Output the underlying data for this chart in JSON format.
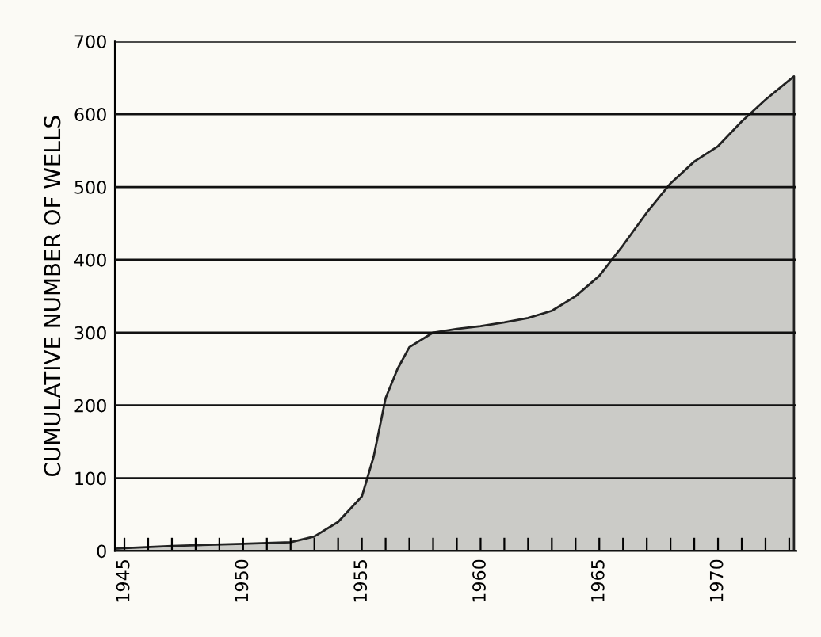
{
  "chart_data": {
    "type": "area",
    "ylabel": "CUMULATIVE NUMBER OF WELLS",
    "x": [
      1944.6,
      1945,
      1947,
      1950,
      1952,
      1953,
      1954,
      1955,
      1955.5,
      1956,
      1956.5,
      1957,
      1958,
      1959,
      1960,
      1961,
      1962,
      1963,
      1964,
      1965,
      1966,
      1967,
      1968,
      1969,
      1970,
      1971,
      1972,
      1973.2
    ],
    "series": [
      {
        "color": "#222222",
        "values": [
          3,
          4,
          7,
          10,
          12,
          20,
          40,
          75,
          130,
          210,
          250,
          280,
          300,
          305,
          309,
          314,
          320,
          330,
          350,
          378,
          420,
          465,
          505,
          535,
          556,
          590,
          620,
          652
        ]
      }
    ],
    "xlim": [
      1944.6,
      1973.3
    ],
    "ylim": [
      0,
      700
    ],
    "xticks": [
      {
        "value": 1945,
        "label": "1945"
      },
      {
        "value": 1946,
        "label": null
      },
      {
        "value": 1947,
        "label": null
      },
      {
        "value": 1948,
        "label": null
      },
      {
        "value": 1949,
        "label": null
      },
      {
        "value": 1950,
        "label": "1950"
      },
      {
        "value": 1951,
        "label": null
      },
      {
        "value": 1952,
        "label": null
      },
      {
        "value": 1953,
        "label": null
      },
      {
        "value": 1954,
        "label": null
      },
      {
        "value": 1955,
        "label": "1955"
      },
      {
        "value": 1956,
        "label": null
      },
      {
        "value": 1957,
        "label": null
      },
      {
        "value": 1958,
        "label": null
      },
      {
        "value": 1959,
        "label": null
      },
      {
        "value": 1960,
        "label": "1960"
      },
      {
        "value": 1961,
        "label": null
      },
      {
        "value": 1962,
        "label": null
      },
      {
        "value": 1963,
        "label": null
      },
      {
        "value": 1964,
        "label": null
      },
      {
        "value": 1965,
        "label": "1965"
      },
      {
        "value": 1966,
        "label": null
      },
      {
        "value": 1967,
        "label": null
      },
      {
        "value": 1968,
        "label": null
      },
      {
        "value": 1969,
        "label": null
      },
      {
        "value": 1970,
        "label": "1970"
      },
      {
        "value": 1971,
        "label": null
      },
      {
        "value": 1972,
        "label": null
      },
      {
        "value": 1973,
        "label": null
      }
    ],
    "yticks": [
      0,
      100,
      200,
      300,
      400,
      500,
      600,
      700
    ],
    "grid": "y",
    "legend": false
  }
}
